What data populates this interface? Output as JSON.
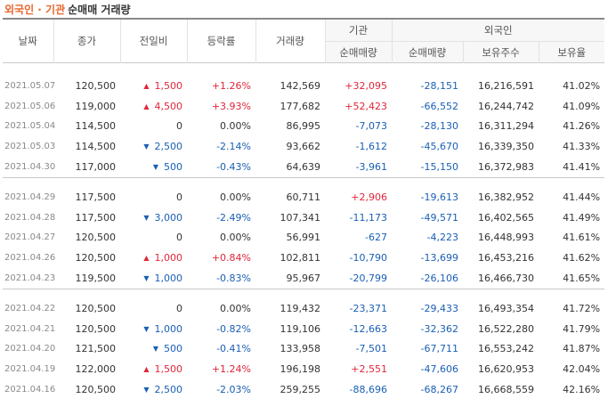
{
  "title": {
    "highlight": "외국인 · 기관",
    "rest": "순매매 거래량"
  },
  "columns": {
    "date": "날짜",
    "close": "종가",
    "change": "전일비",
    "rate": "등락률",
    "volume": "거래량",
    "inst_group": "기관",
    "foreign_group": "외국인",
    "inst_net": "순매매량",
    "foreign_net": "순매매량",
    "foreign_hold": "보유주수",
    "foreign_ratio": "보유율"
  },
  "groups": [
    [
      {
        "date": "2021.05.07",
        "close": "120,500",
        "dir": "up",
        "change": "1,500",
        "rate": "+1.26%",
        "volume": "142,569",
        "inst": "+32,095",
        "foreign": "-28,151",
        "hold": "16,216,591",
        "ratio": "41.02%"
      },
      {
        "date": "2021.05.06",
        "close": "119,000",
        "dir": "up",
        "change": "4,500",
        "rate": "+3.93%",
        "volume": "177,682",
        "inst": "+52,423",
        "foreign": "-66,552",
        "hold": "16,244,742",
        "ratio": "41.09%"
      },
      {
        "date": "2021.05.04",
        "close": "114,500",
        "dir": "none",
        "change": "0",
        "rate": "0.00%",
        "volume": "86,995",
        "inst": "-7,073",
        "foreign": "-28,130",
        "hold": "16,311,294",
        "ratio": "41.26%"
      },
      {
        "date": "2021.05.03",
        "close": "114,500",
        "dir": "down",
        "change": "2,500",
        "rate": "-2.14%",
        "volume": "93,662",
        "inst": "-1,612",
        "foreign": "-45,670",
        "hold": "16,339,350",
        "ratio": "41.33%"
      },
      {
        "date": "2021.04.30",
        "close": "117,000",
        "dir": "down",
        "change": "500",
        "rate": "-0.43%",
        "volume": "64,639",
        "inst": "-3,961",
        "foreign": "-15,150",
        "hold": "16,372,983",
        "ratio": "41.41%"
      }
    ],
    [
      {
        "date": "2021.04.29",
        "close": "117,500",
        "dir": "none",
        "change": "0",
        "rate": "0.00%",
        "volume": "60,711",
        "inst": "+2,906",
        "foreign": "-19,613",
        "hold": "16,382,952",
        "ratio": "41.44%"
      },
      {
        "date": "2021.04.28",
        "close": "117,500",
        "dir": "down",
        "change": "3,000",
        "rate": "-2.49%",
        "volume": "107,341",
        "inst": "-11,173",
        "foreign": "-49,571",
        "hold": "16,402,565",
        "ratio": "41.49%"
      },
      {
        "date": "2021.04.27",
        "close": "120,500",
        "dir": "none",
        "change": "0",
        "rate": "0.00%",
        "volume": "56,991",
        "inst": "-627",
        "foreign": "-4,223",
        "hold": "16,448,993",
        "ratio": "41.61%"
      },
      {
        "date": "2021.04.26",
        "close": "120,500",
        "dir": "up",
        "change": "1,000",
        "rate": "+0.84%",
        "volume": "102,811",
        "inst": "-10,790",
        "foreign": "-13,699",
        "hold": "16,453,216",
        "ratio": "41.62%"
      },
      {
        "date": "2021.04.23",
        "close": "119,500",
        "dir": "down",
        "change": "1,000",
        "rate": "-0.83%",
        "volume": "95,967",
        "inst": "-20,799",
        "foreign": "-26,106",
        "hold": "16,466,730",
        "ratio": "41.65%"
      }
    ],
    [
      {
        "date": "2021.04.22",
        "close": "120,500",
        "dir": "none",
        "change": "0",
        "rate": "0.00%",
        "volume": "119,432",
        "inst": "-23,371",
        "foreign": "-29,433",
        "hold": "16,493,354",
        "ratio": "41.72%"
      },
      {
        "date": "2021.04.21",
        "close": "120,500",
        "dir": "down",
        "change": "1,000",
        "rate": "-0.82%",
        "volume": "119,106",
        "inst": "-12,663",
        "foreign": "-32,362",
        "hold": "16,522,280",
        "ratio": "41.79%"
      },
      {
        "date": "2021.04.20",
        "close": "121,500",
        "dir": "down",
        "change": "500",
        "rate": "-0.41%",
        "volume": "133,958",
        "inst": "-7,501",
        "foreign": "-67,711",
        "hold": "16,553,242",
        "ratio": "41.87%"
      },
      {
        "date": "2021.04.19",
        "close": "122,000",
        "dir": "up",
        "change": "1,500",
        "rate": "+1.24%",
        "volume": "196,198",
        "inst": "+2,551",
        "foreign": "-47,606",
        "hold": "16,620,953",
        "ratio": "42.04%"
      },
      {
        "date": "2021.04.16",
        "close": "120,500",
        "dir": "down",
        "change": "2,500",
        "rate": "-2.03%",
        "volume": "259,255",
        "inst": "-88,696",
        "foreign": "-68,267",
        "hold": "16,668,559",
        "ratio": "42.16%"
      }
    ]
  ],
  "colors": {
    "up": "#e0263a",
    "down": "#1a5fb4",
    "title_accent": "#e8662c"
  }
}
